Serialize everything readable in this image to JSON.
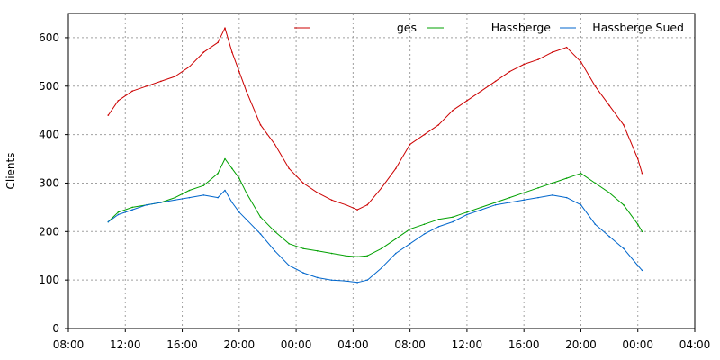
{
  "chart_data": {
    "type": "line",
    "title": "",
    "xlabel": "",
    "ylabel": "Clients",
    "ylim": [
      0,
      650
    ],
    "xlim": [
      0,
      44
    ],
    "x_unit": "hours",
    "y_ticks": [
      0,
      100,
      200,
      300,
      400,
      500,
      600
    ],
    "x_ticks": [
      {
        "x": 0,
        "label": "08:00"
      },
      {
        "x": 4,
        "label": "12:00"
      },
      {
        "x": 8,
        "label": "16:00"
      },
      {
        "x": 12,
        "label": "20:00"
      },
      {
        "x": 16,
        "label": "00:00"
      },
      {
        "x": 20,
        "label": "04:00"
      },
      {
        "x": 24,
        "label": "08:00"
      },
      {
        "x": 28,
        "label": "12:00"
      },
      {
        "x": 32,
        "label": "16:00"
      },
      {
        "x": 36,
        "label": "20:00"
      },
      {
        "x": 40,
        "label": "00:00"
      },
      {
        "x": 44,
        "label": "04:00"
      }
    ],
    "grid": true,
    "legend_position": "top-right",
    "series": [
      {
        "name": "ges",
        "color": "#cc0000",
        "x": [
          2.8,
          3.5,
          4.5,
          5.5,
          6.5,
          7.5,
          8.5,
          9.5,
          10.5,
          11.0,
          11.5,
          12.0,
          12.5,
          13.5,
          14.5,
          15.5,
          16.5,
          17.5,
          18.5,
          19.5,
          20.3,
          21.0,
          22.0,
          23.0,
          24.0,
          25.0,
          26.0,
          27.0,
          28.0,
          29.0,
          30.0,
          31.0,
          32.0,
          33.0,
          34.0,
          35.0,
          36.0,
          37.0,
          38.0,
          39.0,
          40.0,
          40.3
        ],
        "values": [
          440,
          470,
          490,
          500,
          510,
          520,
          540,
          570,
          590,
          620,
          570,
          530,
          490,
          420,
          380,
          330,
          300,
          280,
          265,
          255,
          245,
          255,
          290,
          330,
          380,
          400,
          420,
          450,
          470,
          490,
          510,
          530,
          545,
          555,
          570,
          580,
          550,
          500,
          460,
          420,
          350,
          320
        ]
      },
      {
        "name": "Hassberge",
        "color": "#00a000",
        "x": [
          2.8,
          3.5,
          4.5,
          5.5,
          6.5,
          7.5,
          8.5,
          9.5,
          10.5,
          11.0,
          11.5,
          12.0,
          12.5,
          13.5,
          14.5,
          15.5,
          16.5,
          17.5,
          18.5,
          19.5,
          20.3,
          21.0,
          22.0,
          23.0,
          24.0,
          25.0,
          26.0,
          27.0,
          28.0,
          29.0,
          30.0,
          31.0,
          32.0,
          33.0,
          34.0,
          35.0,
          36.0,
          37.0,
          38.0,
          39.0,
          40.0,
          40.3
        ],
        "values": [
          220,
          240,
          250,
          255,
          260,
          270,
          285,
          295,
          320,
          350,
          330,
          310,
          280,
          230,
          200,
          175,
          165,
          160,
          155,
          150,
          148,
          150,
          165,
          185,
          205,
          215,
          225,
          230,
          240,
          250,
          260,
          270,
          280,
          290,
          300,
          310,
          320,
          300,
          280,
          255,
          215,
          200
        ]
      },
      {
        "name": "Hassberge Sued",
        "color": "#0066cc",
        "x": [
          2.8,
          3.5,
          4.5,
          5.5,
          6.5,
          7.5,
          8.5,
          9.5,
          10.5,
          11.0,
          11.5,
          12.0,
          12.5,
          13.5,
          14.5,
          15.5,
          16.5,
          17.5,
          18.5,
          19.5,
          20.3,
          21.0,
          22.0,
          23.0,
          24.0,
          25.0,
          26.0,
          27.0,
          28.0,
          29.0,
          30.0,
          31.0,
          32.0,
          33.0,
          34.0,
          35.0,
          36.0,
          37.0,
          38.0,
          39.0,
          40.0,
          40.3
        ],
        "values": [
          220,
          235,
          245,
          255,
          260,
          265,
          270,
          275,
          270,
          285,
          260,
          240,
          225,
          195,
          160,
          130,
          115,
          105,
          100,
          98,
          95,
          100,
          125,
          155,
          175,
          195,
          210,
          220,
          235,
          245,
          255,
          260,
          265,
          270,
          275,
          270,
          255,
          215,
          190,
          165,
          130,
          120
        ]
      }
    ]
  }
}
